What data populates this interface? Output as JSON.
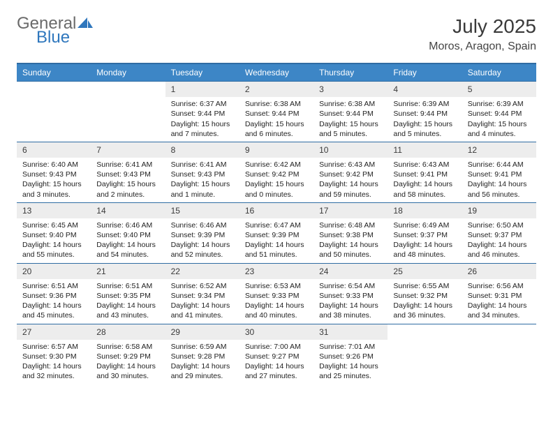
{
  "brand": {
    "text1": "General",
    "text2": "Blue",
    "sail_color": "#2f77bd"
  },
  "title": {
    "month": "July 2025",
    "location": "Moros, Aragon, Spain"
  },
  "theme": {
    "header_bg": "#3d86c6",
    "header_border": "#2f6ca3",
    "daynum_bg": "#ededed",
    "text_color": "#222222",
    "font_size_body": 10.5,
    "font_size_daynum": 12,
    "font_size_header": 12,
    "font_size_title": 28,
    "font_size_location": 16
  },
  "weekdays": [
    "Sunday",
    "Monday",
    "Tuesday",
    "Wednesday",
    "Thursday",
    "Friday",
    "Saturday"
  ],
  "weeks": [
    [
      null,
      null,
      {
        "n": "1",
        "sr": "6:37 AM",
        "ss": "9:44 PM",
        "dl": "15 hours and 7 minutes."
      },
      {
        "n": "2",
        "sr": "6:38 AM",
        "ss": "9:44 PM",
        "dl": "15 hours and 6 minutes."
      },
      {
        "n": "3",
        "sr": "6:38 AM",
        "ss": "9:44 PM",
        "dl": "15 hours and 5 minutes."
      },
      {
        "n": "4",
        "sr": "6:39 AM",
        "ss": "9:44 PM",
        "dl": "15 hours and 5 minutes."
      },
      {
        "n": "5",
        "sr": "6:39 AM",
        "ss": "9:44 PM",
        "dl": "15 hours and 4 minutes."
      }
    ],
    [
      {
        "n": "6",
        "sr": "6:40 AM",
        "ss": "9:43 PM",
        "dl": "15 hours and 3 minutes."
      },
      {
        "n": "7",
        "sr": "6:41 AM",
        "ss": "9:43 PM",
        "dl": "15 hours and 2 minutes."
      },
      {
        "n": "8",
        "sr": "6:41 AM",
        "ss": "9:43 PM",
        "dl": "15 hours and 1 minute."
      },
      {
        "n": "9",
        "sr": "6:42 AM",
        "ss": "9:42 PM",
        "dl": "15 hours and 0 minutes."
      },
      {
        "n": "10",
        "sr": "6:43 AM",
        "ss": "9:42 PM",
        "dl": "14 hours and 59 minutes."
      },
      {
        "n": "11",
        "sr": "6:43 AM",
        "ss": "9:41 PM",
        "dl": "14 hours and 58 minutes."
      },
      {
        "n": "12",
        "sr": "6:44 AM",
        "ss": "9:41 PM",
        "dl": "14 hours and 56 minutes."
      }
    ],
    [
      {
        "n": "13",
        "sr": "6:45 AM",
        "ss": "9:40 PM",
        "dl": "14 hours and 55 minutes."
      },
      {
        "n": "14",
        "sr": "6:46 AM",
        "ss": "9:40 PM",
        "dl": "14 hours and 54 minutes."
      },
      {
        "n": "15",
        "sr": "6:46 AM",
        "ss": "9:39 PM",
        "dl": "14 hours and 52 minutes."
      },
      {
        "n": "16",
        "sr": "6:47 AM",
        "ss": "9:39 PM",
        "dl": "14 hours and 51 minutes."
      },
      {
        "n": "17",
        "sr": "6:48 AM",
        "ss": "9:38 PM",
        "dl": "14 hours and 50 minutes."
      },
      {
        "n": "18",
        "sr": "6:49 AM",
        "ss": "9:37 PM",
        "dl": "14 hours and 48 minutes."
      },
      {
        "n": "19",
        "sr": "6:50 AM",
        "ss": "9:37 PM",
        "dl": "14 hours and 46 minutes."
      }
    ],
    [
      {
        "n": "20",
        "sr": "6:51 AM",
        "ss": "9:36 PM",
        "dl": "14 hours and 45 minutes."
      },
      {
        "n": "21",
        "sr": "6:51 AM",
        "ss": "9:35 PM",
        "dl": "14 hours and 43 minutes."
      },
      {
        "n": "22",
        "sr": "6:52 AM",
        "ss": "9:34 PM",
        "dl": "14 hours and 41 minutes."
      },
      {
        "n": "23",
        "sr": "6:53 AM",
        "ss": "9:33 PM",
        "dl": "14 hours and 40 minutes."
      },
      {
        "n": "24",
        "sr": "6:54 AM",
        "ss": "9:33 PM",
        "dl": "14 hours and 38 minutes."
      },
      {
        "n": "25",
        "sr": "6:55 AM",
        "ss": "9:32 PM",
        "dl": "14 hours and 36 minutes."
      },
      {
        "n": "26",
        "sr": "6:56 AM",
        "ss": "9:31 PM",
        "dl": "14 hours and 34 minutes."
      }
    ],
    [
      {
        "n": "27",
        "sr": "6:57 AM",
        "ss": "9:30 PM",
        "dl": "14 hours and 32 minutes."
      },
      {
        "n": "28",
        "sr": "6:58 AM",
        "ss": "9:29 PM",
        "dl": "14 hours and 30 minutes."
      },
      {
        "n": "29",
        "sr": "6:59 AM",
        "ss": "9:28 PM",
        "dl": "14 hours and 29 minutes."
      },
      {
        "n": "30",
        "sr": "7:00 AM",
        "ss": "9:27 PM",
        "dl": "14 hours and 27 minutes."
      },
      {
        "n": "31",
        "sr": "7:01 AM",
        "ss": "9:26 PM",
        "dl": "14 hours and 25 minutes."
      },
      null,
      null
    ]
  ],
  "labels": {
    "sunrise": "Sunrise:",
    "sunset": "Sunset:",
    "daylight": "Daylight:"
  }
}
